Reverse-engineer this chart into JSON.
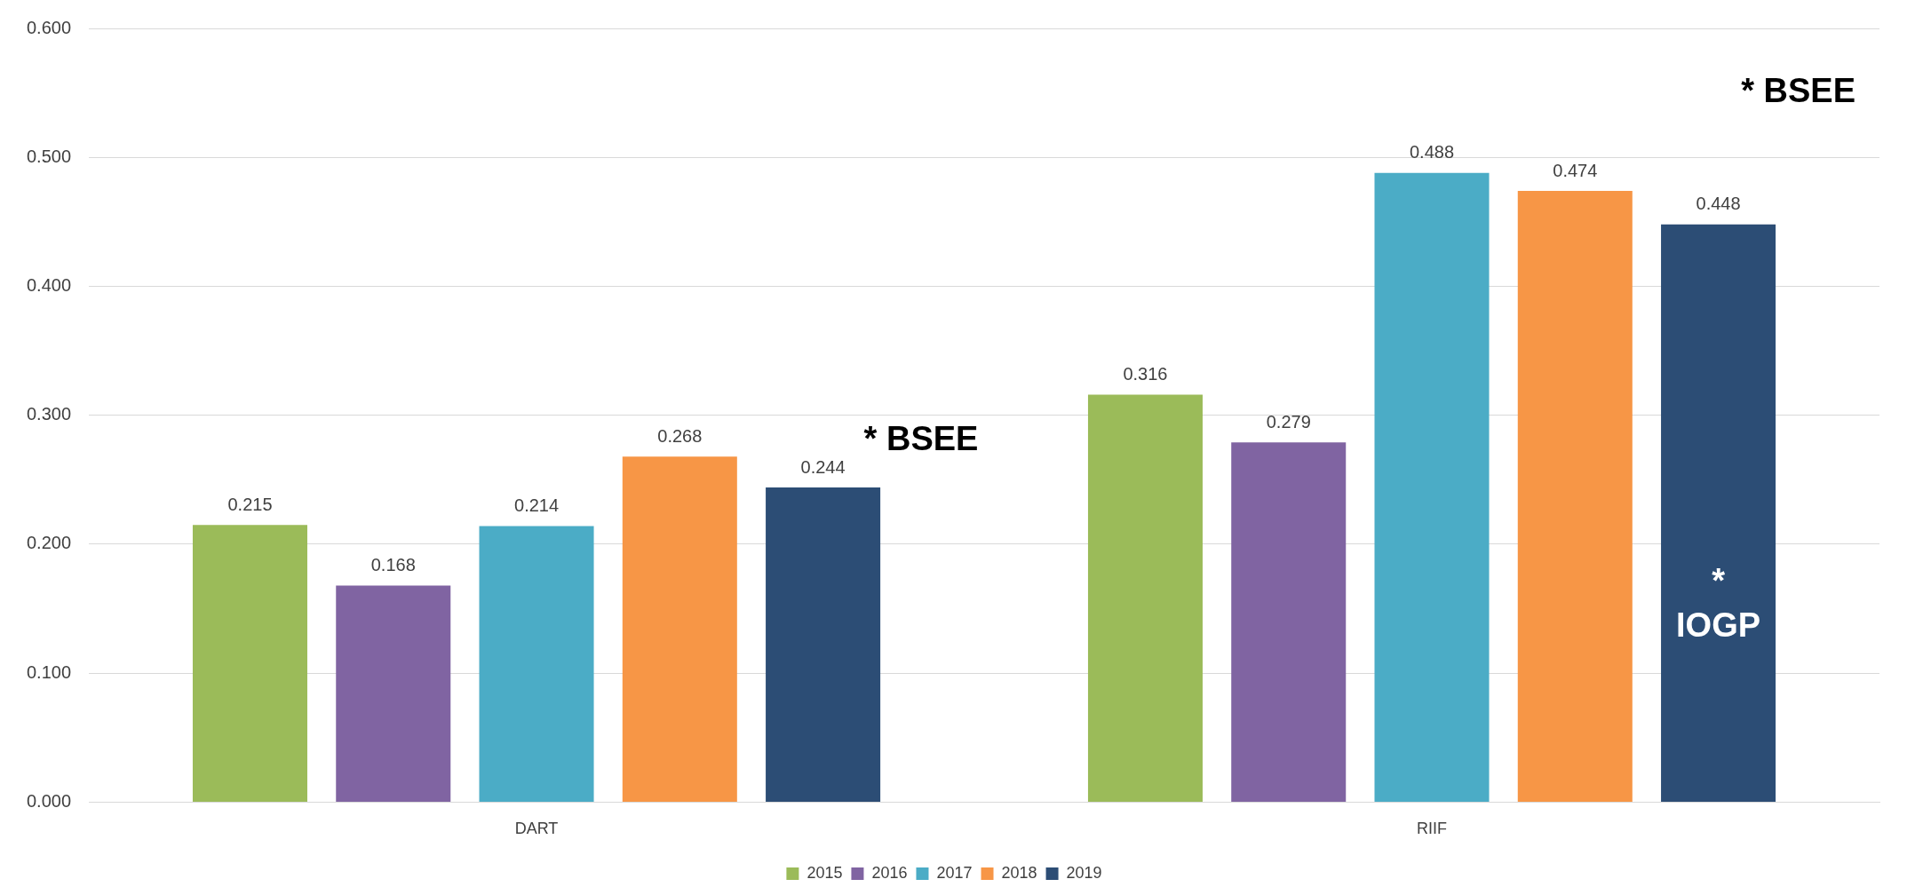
{
  "chart_data": {
    "type": "bar",
    "categories": [
      "DART",
      "RIIF"
    ],
    "series": [
      {
        "name": "2015",
        "color": "#9bbb59",
        "values": [
          0.215,
          0.316
        ]
      },
      {
        "name": "2016",
        "color": "#8064a2",
        "values": [
          0.168,
          0.279
        ]
      },
      {
        "name": "2017",
        "color": "#4bacc6",
        "values": [
          0.214,
          0.488
        ]
      },
      {
        "name": "2018",
        "color": "#f79646",
        "values": [
          0.268,
          0.474
        ]
      },
      {
        "name": "2019",
        "color": "#2c4d75",
        "values": [
          0.244,
          0.448
        ]
      }
    ],
    "ylim": [
      0,
      0.6
    ],
    "yticks": [
      {
        "value": 0,
        "label": "0.000"
      },
      {
        "value": 0.1,
        "label": "0.100"
      },
      {
        "value": 0.2,
        "label": "0.200"
      },
      {
        "value": 0.3,
        "label": "0.300"
      },
      {
        "value": 0.4,
        "label": "0.400"
      },
      {
        "value": 0.5,
        "label": "0.500"
      },
      {
        "value": 0.6,
        "label": "0.600"
      }
    ],
    "grid": "y",
    "legend": "bottom",
    "data_labels": true,
    "annotations": [
      "* BSEE",
      "* BSEE",
      "* IOGP"
    ]
  }
}
